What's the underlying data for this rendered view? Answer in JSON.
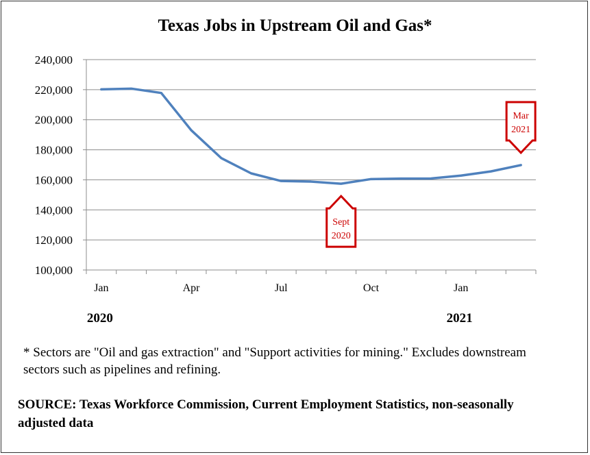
{
  "chart_data": {
    "type": "line",
    "title": "Texas Jobs in Upstream Oil and Gas*",
    "x": [
      "2020-01",
      "2020-02",
      "2020-03",
      "2020-04",
      "2020-05",
      "2020-06",
      "2020-07",
      "2020-08",
      "2020-09",
      "2020-10",
      "2020-11",
      "2020-12",
      "2021-01",
      "2021-02",
      "2021-03"
    ],
    "series": [
      {
        "values": [
          220200,
          220700,
          217800,
          193000,
          174500,
          164300,
          159200,
          158800,
          157400,
          160500,
          160800,
          160900,
          162800,
          165600,
          169800
        ]
      }
    ],
    "ylim": [
      100000,
      240000
    ],
    "y_ticks": [
      "100,000",
      "120,000",
      "140,000",
      "160,000",
      "180,000",
      "200,000",
      "220,000",
      "240,000"
    ],
    "x_tick_labels": [
      {
        "index": 0,
        "label": "Jan"
      },
      {
        "index": 3,
        "label": "Apr"
      },
      {
        "index": 6,
        "label": "Jul"
      },
      {
        "index": 9,
        "label": "Oct"
      },
      {
        "index": 12,
        "label": "Jan"
      }
    ],
    "year_labels": [
      {
        "index": 0,
        "label": "2020"
      },
      {
        "index": 12,
        "label": "2021"
      }
    ],
    "grid": true,
    "line_color": "#4F81BD",
    "annotations": [
      {
        "index": 8,
        "line1": "Sept",
        "line2": "2020",
        "direction": "up",
        "color": "#CC0000"
      },
      {
        "index": 14,
        "line1": "Mar",
        "line2": "2021",
        "direction": "down",
        "color": "#CC0000"
      }
    ]
  },
  "footnote": "* Sectors are \"Oil and gas extraction\" and \"Support activities for mining.\"   Excludes downstream sectors such as pipelines and refining.",
  "source": "SOURCE: Texas Workforce Commission, Current Employment Statistics, non-seasonally adjusted data"
}
